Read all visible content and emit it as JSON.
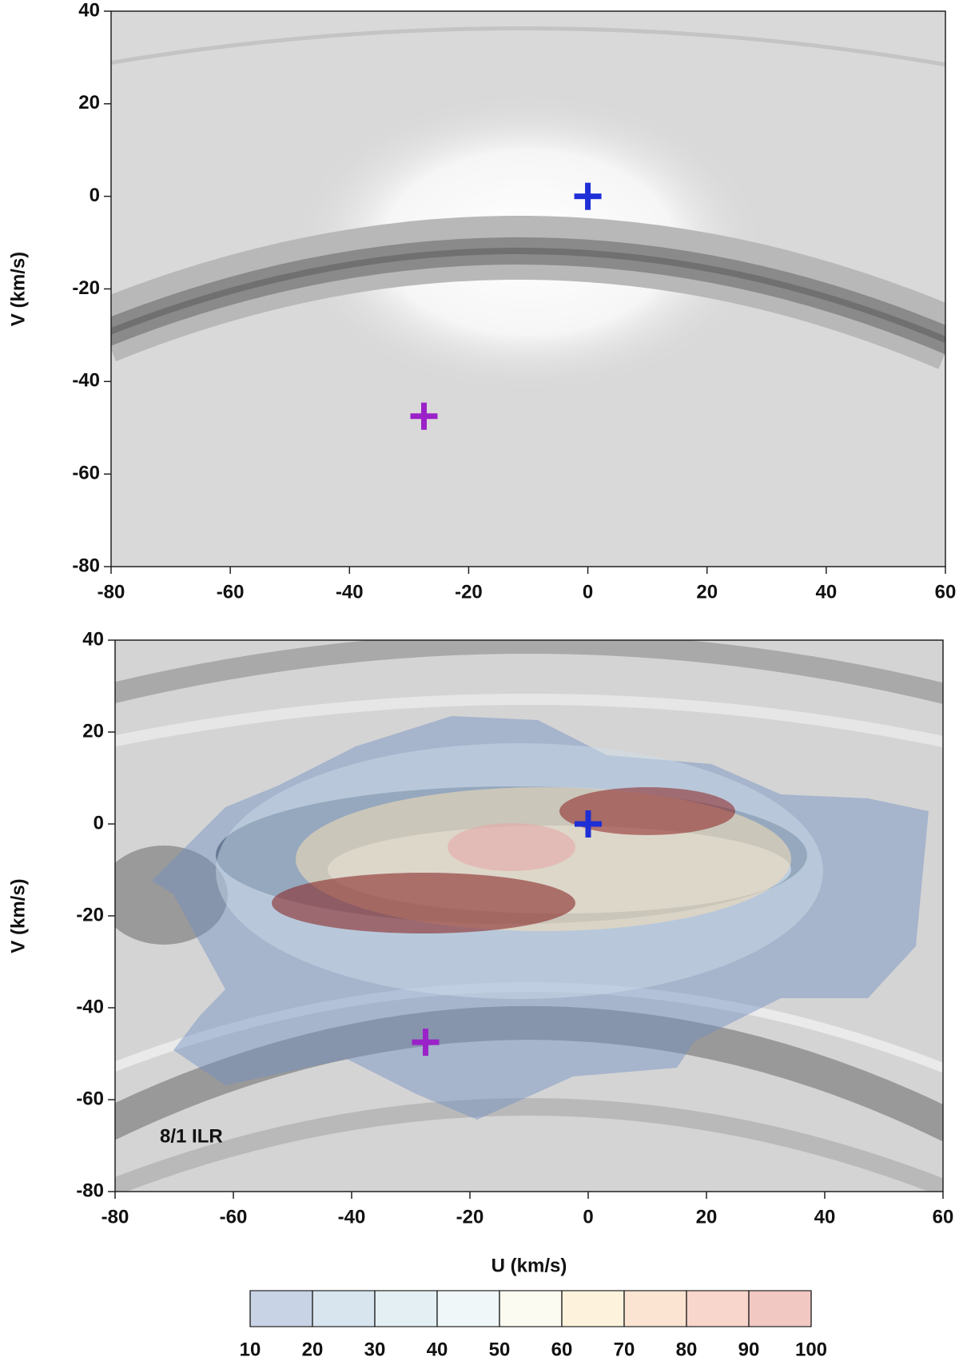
{
  "chart_data": [
    {
      "type": "scatter",
      "ylabel": "V (km/s)",
      "xlim": [
        -80,
        60
      ],
      "ylim": [
        -80,
        40
      ],
      "xticks": [
        -80,
        -60,
        -40,
        -20,
        0,
        20,
        40,
        60
      ],
      "yticks": [
        -80,
        -60,
        -40,
        -20,
        0,
        20,
        40
      ],
      "points": [
        {
          "x": 0,
          "y": 0,
          "color": "#1f2fd6"
        },
        {
          "x": -27.5,
          "y": -47.5,
          "color": "#9a22c8"
        }
      ]
    },
    {
      "type": "scatter",
      "xlabel": "U (km/s)",
      "ylabel": "V (km/s)",
      "annotation": "8/1 ILR",
      "xlim": [
        -80,
        60
      ],
      "ylim": [
        -80,
        40
      ],
      "xticks": [
        -80,
        -60,
        -40,
        -20,
        0,
        20,
        40,
        60
      ],
      "yticks": [
        -80,
        -60,
        -40,
        -20,
        0,
        20,
        40
      ],
      "points": [
        {
          "x": 0,
          "y": 0,
          "color": "#1f2fd6"
        },
        {
          "x": -27.5,
          "y": -47.5,
          "color": "#9a22c8"
        }
      ]
    },
    {
      "type": "colorbar",
      "ticks": [
        10,
        20,
        30,
        40,
        50,
        60,
        70,
        80,
        90,
        100
      ],
      "colors": [
        "#c9d3e6",
        "#d8e5ef",
        "#e4eff4",
        "#f0f7f8",
        "#fbfbf1",
        "#fdf3dc",
        "#fbe5d2",
        "#f8d6cb",
        "#f2c8c3"
      ]
    }
  ]
}
